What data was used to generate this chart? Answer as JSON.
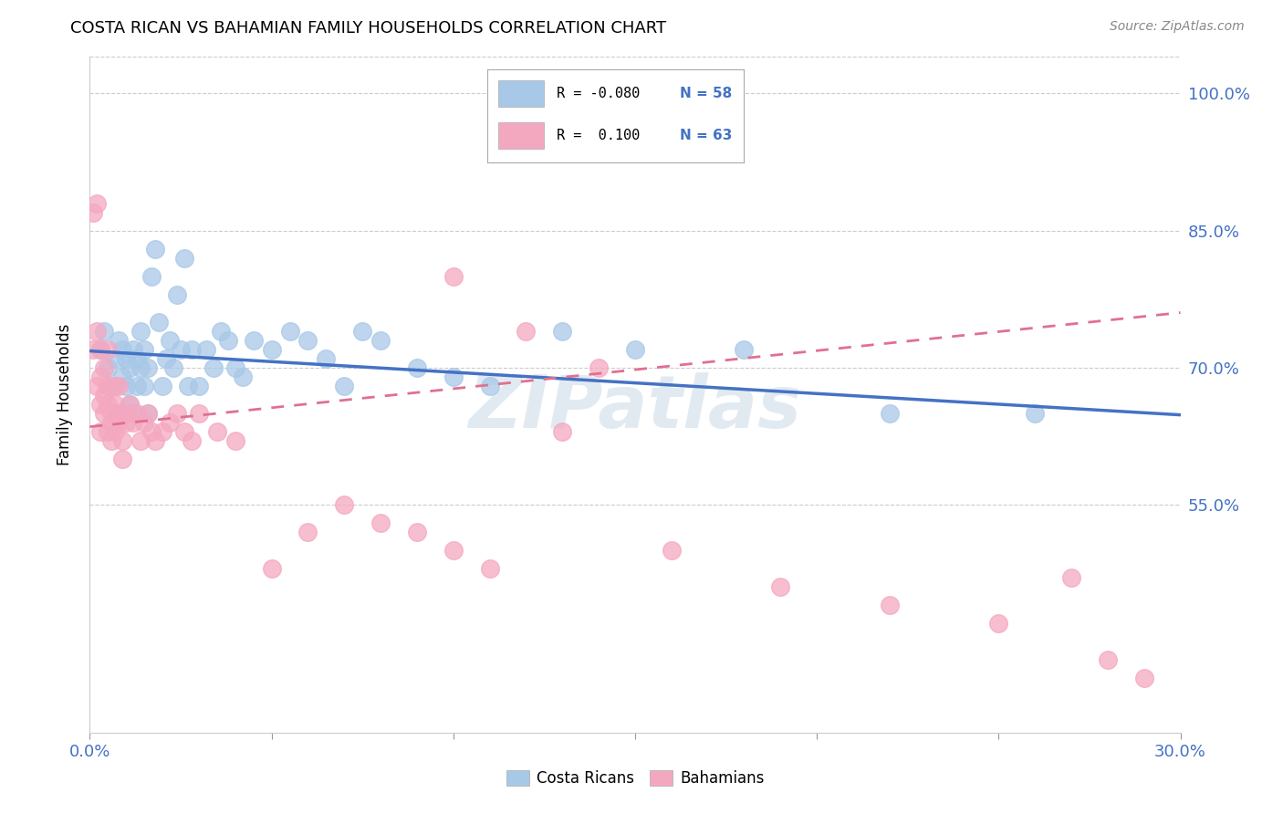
{
  "title": "COSTA RICAN VS BAHAMIAN FAMILY HOUSEHOLDS CORRELATION CHART",
  "source": "Source: ZipAtlas.com",
  "ylabel": "Family Households",
  "yticks_labels": [
    "55.0%",
    "70.0%",
    "85.0%",
    "100.0%"
  ],
  "ytick_vals": [
    0.55,
    0.7,
    0.85,
    1.0
  ],
  "xlim": [
    0.0,
    0.3
  ],
  "ylim": [
    0.3,
    1.04
  ],
  "blue_color": "#a8c8e8",
  "pink_color": "#f4a8c0",
  "blue_line_color": "#4472c4",
  "pink_line_color": "#e07090",
  "watermark": "ZIPatlas",
  "costa_rican_x": [
    0.003,
    0.004,
    0.005,
    0.006,
    0.007,
    0.007,
    0.008,
    0.009,
    0.009,
    0.01,
    0.01,
    0.011,
    0.011,
    0.012,
    0.012,
    0.013,
    0.013,
    0.014,
    0.014,
    0.015,
    0.015,
    0.016,
    0.016,
    0.017,
    0.018,
    0.019,
    0.02,
    0.021,
    0.022,
    0.023,
    0.024,
    0.025,
    0.026,
    0.027,
    0.028,
    0.03,
    0.032,
    0.034,
    0.036,
    0.038,
    0.04,
    0.042,
    0.045,
    0.05,
    0.055,
    0.06,
    0.065,
    0.07,
    0.075,
    0.08,
    0.09,
    0.1,
    0.11,
    0.13,
    0.15,
    0.18,
    0.22,
    0.26
  ],
  "costa_rican_y": [
    0.72,
    0.74,
    0.7,
    0.68,
    0.71,
    0.65,
    0.73,
    0.69,
    0.72,
    0.68,
    0.71,
    0.7,
    0.66,
    0.72,
    0.65,
    0.68,
    0.71,
    0.7,
    0.74,
    0.68,
    0.72,
    0.65,
    0.7,
    0.8,
    0.83,
    0.75,
    0.68,
    0.71,
    0.73,
    0.7,
    0.78,
    0.72,
    0.82,
    0.68,
    0.72,
    0.68,
    0.72,
    0.7,
    0.74,
    0.73,
    0.7,
    0.69,
    0.73,
    0.72,
    0.74,
    0.73,
    0.71,
    0.68,
    0.74,
    0.73,
    0.7,
    0.69,
    0.68,
    0.74,
    0.72,
    0.72,
    0.65,
    0.65
  ],
  "bahamian_x": [
    0.001,
    0.001,
    0.002,
    0.002,
    0.002,
    0.003,
    0.003,
    0.003,
    0.003,
    0.004,
    0.004,
    0.004,
    0.005,
    0.005,
    0.005,
    0.005,
    0.006,
    0.006,
    0.006,
    0.007,
    0.007,
    0.007,
    0.008,
    0.008,
    0.008,
    0.009,
    0.009,
    0.01,
    0.01,
    0.011,
    0.012,
    0.013,
    0.014,
    0.015,
    0.016,
    0.017,
    0.018,
    0.02,
    0.022,
    0.024,
    0.026,
    0.028,
    0.03,
    0.035,
    0.04,
    0.05,
    0.06,
    0.07,
    0.08,
    0.09,
    0.1,
    0.11,
    0.13,
    0.16,
    0.19,
    0.22,
    0.25,
    0.27,
    0.28,
    0.29,
    0.1,
    0.12,
    0.14
  ],
  "bahamian_y": [
    0.72,
    0.87,
    0.88,
    0.68,
    0.74,
    0.72,
    0.66,
    0.69,
    0.63,
    0.65,
    0.67,
    0.7,
    0.63,
    0.66,
    0.72,
    0.68,
    0.65,
    0.64,
    0.62,
    0.66,
    0.63,
    0.68,
    0.65,
    0.64,
    0.68,
    0.6,
    0.62,
    0.65,
    0.64,
    0.66,
    0.64,
    0.65,
    0.62,
    0.64,
    0.65,
    0.63,
    0.62,
    0.63,
    0.64,
    0.65,
    0.63,
    0.62,
    0.65,
    0.63,
    0.62,
    0.48,
    0.52,
    0.55,
    0.53,
    0.52,
    0.5,
    0.48,
    0.63,
    0.5,
    0.46,
    0.44,
    0.42,
    0.47,
    0.38,
    0.36,
    0.8,
    0.74,
    0.7
  ],
  "cr_line_x0": 0.0,
  "cr_line_x1": 0.3,
  "cr_line_y0": 0.718,
  "cr_line_y1": 0.648,
  "bah_line_x0": 0.0,
  "bah_line_x1": 0.3,
  "bah_line_y0": 0.635,
  "bah_line_y1": 0.76
}
